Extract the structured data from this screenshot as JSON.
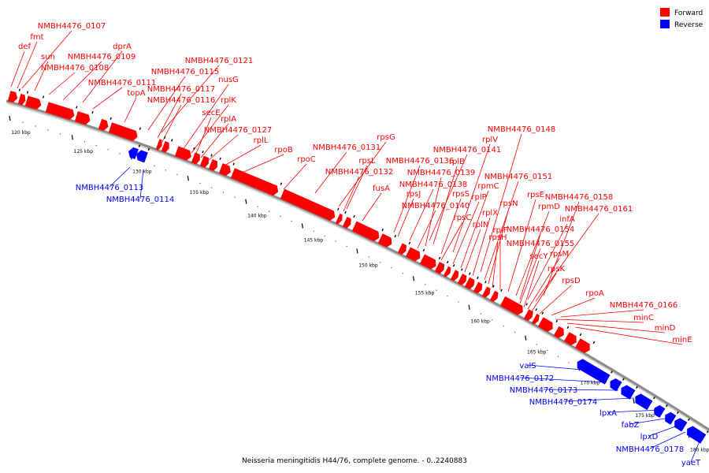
{
  "legend": [
    {
      "label": "Forward",
      "color": "#ff0000"
    },
    {
      "label": "Reverse",
      "color": "#0000ff"
    }
  ],
  "footer": "Neisseria meningitidis H44/76, complete genome. - 0..2240883",
  "colors": {
    "forward": "#ff0000",
    "reverse": "#0000ff",
    "axis": "#8c8c8c"
  },
  "ticks": [
    "120 kbp",
    "125 kbp",
    "130 kbp",
    "135 kbp",
    "140 kbp",
    "145 kbp",
    "150 kbp",
    "155 kbp",
    "160 kbp",
    "165 kbp",
    "170 kbp",
    "175 kbp",
    "180 kbp"
  ],
  "forward_genes": [
    "NMBH4476_0107",
    "fmt",
    "def",
    "sun",
    "dprA",
    "NMBH4476_0109",
    "NMBH4476_0108",
    "NMBH4476_0121",
    "NMBH4476_0115",
    "NMBH4476_0111",
    "nusG",
    "topA",
    "NMBH4476_0117",
    "rplK",
    "NMBH4476_0116",
    "secE",
    "rplA",
    "NMBH4476_0127",
    "rplL",
    "rpoB",
    "rpoC",
    "rpsG",
    "NMBH4476_0131",
    "rpsL",
    "NMBH4476_0132",
    "fusA",
    "NMBH4476_0136",
    "rpsJ",
    "NMBH4476_0138",
    "NMBH4476_0140",
    "NMBH4476_0141",
    "rplB",
    "NMBH4476_0139",
    "rplV",
    "NMBH4476_0148",
    "rpsS",
    "rpsC",
    "rplP",
    "rpmC",
    "rplN",
    "rplX",
    "NMBH4476_0151",
    "rpsN",
    "rpsH",
    "rplF",
    "rpsE",
    "rpmD",
    "NMBH4476_0158",
    "NMBH4476_0161",
    "infA",
    "NMBH4476_0154",
    "NMBH4476_0155",
    "secY",
    "rpsM",
    "rpsK",
    "rpsD",
    "rpoA",
    "NMBH4476_0166",
    "minC",
    "minD",
    "minE"
  ],
  "reverse_genes": [
    "NMBH4476_0113",
    "NMBH4476_0114",
    "valS",
    "NMBH4476_0172",
    "NMBH4476_0173",
    "NMBH4476_0174",
    "lpxA",
    "fabZ",
    "lpxD",
    "NMBH4476_0178",
    "yaeT"
  ]
}
